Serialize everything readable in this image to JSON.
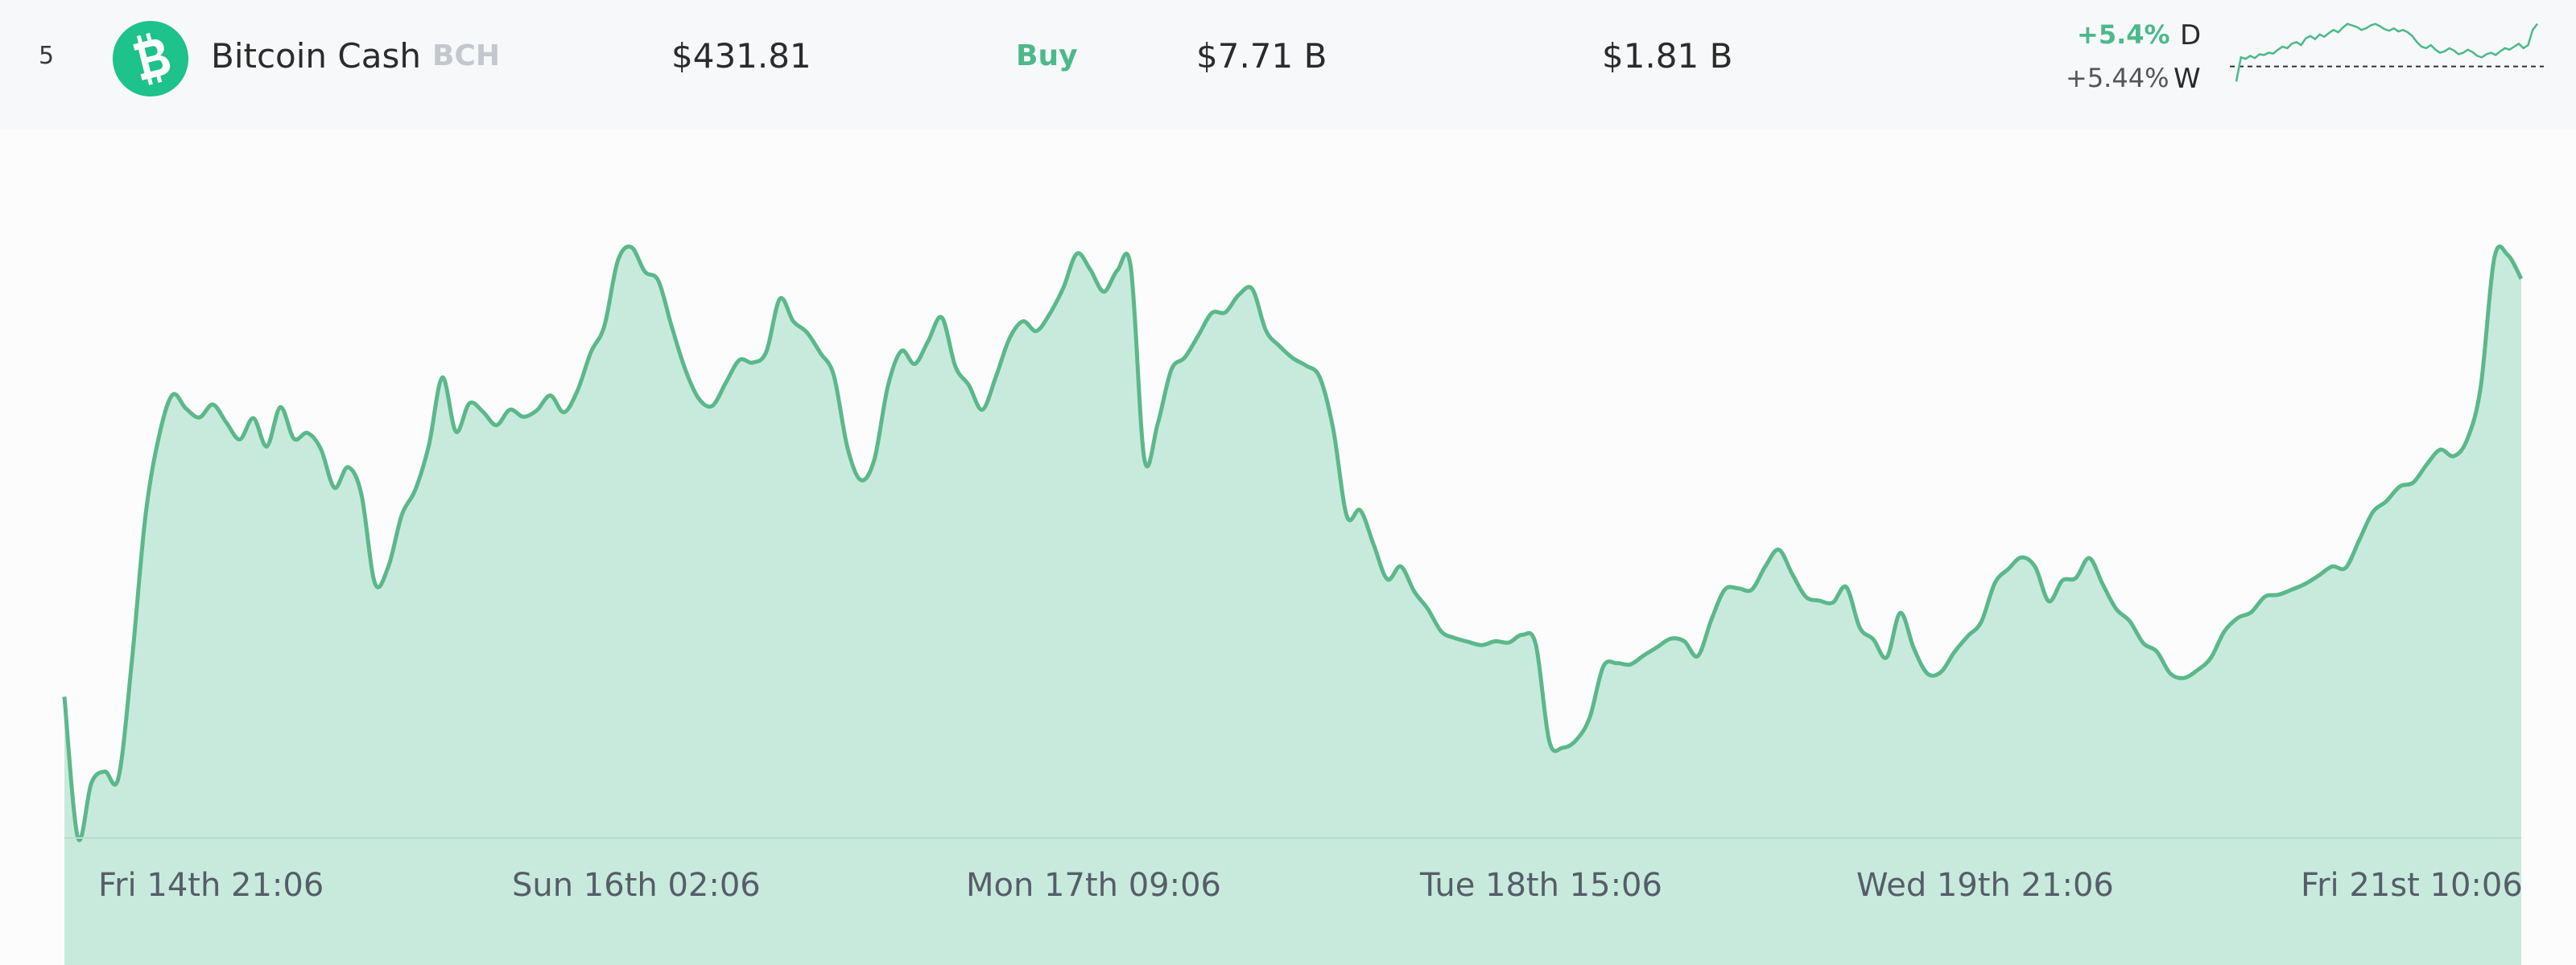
{
  "asset_row": {
    "rank": "5",
    "name": "Bitcoin Cash",
    "symbol": "BCH",
    "price": "$431.81",
    "buy_label": "Buy",
    "market_cap": "$7.71 B",
    "volume": "$1.81 B",
    "change_day_pct": "+5.4%",
    "change_day_label": "D",
    "change_week_pct": "+5.44%",
    "change_week_label": "W",
    "icon": "bitcoin-cash-icon",
    "sparkline": {
      "values": [
        28,
        60,
        58,
        62,
        59,
        64,
        63,
        66,
        65,
        70,
        74,
        72,
        78,
        80,
        76,
        85,
        88,
        84,
        90,
        87,
        92,
        96,
        93,
        99,
        104,
        102,
        100,
        96,
        98,
        102,
        104,
        101,
        97,
        95,
        98,
        94,
        96,
        93,
        88,
        80,
        74,
        72,
        76,
        70,
        66,
        68,
        72,
        69,
        64,
        66,
        70,
        67,
        62,
        60,
        64,
        66,
        63,
        68,
        72,
        70,
        74,
        78,
        72,
        76,
        96,
        104
      ],
      "baseline": 48
    }
  },
  "colors": {
    "accent": "#4cb98a",
    "chart_line": "#5bb88a",
    "chart_fill": "#c8eadc",
    "icon_bg": "#1ec28b",
    "muted": "#c4c7cc"
  },
  "chart_data": {
    "type": "area",
    "title": "",
    "xlabel": "",
    "ylabel": "",
    "ylim": [
      0,
      100
    ],
    "x_ticks": [
      "Fri 14th 21:06",
      "Sun 16th 02:06",
      "Mon 17th 09:06",
      "Tue 18th 15:06",
      "Wed 19th 21:06",
      "Fri 21st 10:06"
    ],
    "y_axis_shown": false,
    "grid": false,
    "series": [
      {
        "values": [
          21.9,
          0,
          8.5,
          10.3,
          9.3,
          27.4,
          49.8,
          62.2,
          68.7,
          66.6,
          65.2,
          67.2,
          64.4,
          61.8,
          65.1,
          60.7,
          66.8,
          61.9,
          62.8,
          60.3,
          54.3,
          57.5,
          53.3,
          39.5,
          42.1,
          50.1,
          54.0,
          60.9,
          71.4,
          63.0,
          67.4,
          66.1,
          64.0,
          66.4,
          65.3,
          66.3,
          68.6,
          66.0,
          69.3,
          75.3,
          79.4,
          89.5,
          91.6,
          87.8,
          86.4,
          79.2,
          72.6,
          68.1,
          67.0,
          70.6,
          74.1,
          73.7,
          75.4,
          83.6,
          80.1,
          78.4,
          75.2,
          71.7,
          60.6,
          55.5,
          58.7,
          70.0,
          75.5,
          73.5,
          77.1,
          80.7,
          73.1,
          70.2,
          66.4,
          71.5,
          77.4,
          80.1,
          78.6,
          81.3,
          85.3,
          90.6,
          88.1,
          84.7,
          88.0,
          88.4,
          58.8,
          64.3,
          72.6,
          74.5,
          77.9,
          81.4,
          81.5,
          84.2,
          85.1,
          78.7,
          76.3,
          74.4,
          73.2,
          71.4,
          63.3,
          49.9,
          50.8,
          45.4,
          40.1,
          42.1,
          38.2,
          35.5,
          32.0,
          31.0,
          30.4,
          29.9,
          30.5,
          30.3,
          31.5,
          30.0,
          15.0,
          14.0,
          15.2,
          18.7,
          26.6,
          27.1,
          26.9,
          28.3,
          29.6,
          30.9,
          30.5,
          28.2,
          33.8,
          38.5,
          38.7,
          38.5,
          42.1,
          44.7,
          40.9,
          37.4,
          36.8,
          36.5,
          38.9,
          32.6,
          30.8,
          28.0,
          34.9,
          29.4,
          25.5,
          25.7,
          28.8,
          31.3,
          33.5,
          39.5,
          41.7,
          43.5,
          42.0,
          36.7,
          39.9,
          40.3,
          43.4,
          39.3,
          35.5,
          33.6,
          30.2,
          28.9,
          25.5,
          24.8,
          26.0,
          27.9,
          32.0,
          34.1,
          35.0,
          37.4,
          37.7,
          38.5,
          39.4,
          40.7,
          42.1,
          41.9,
          46.2,
          50.5,
          52.2,
          54.5,
          55.1,
          57.9,
          60.2,
          59.2,
          61.8,
          70.0,
          89.9,
          90.4,
          86.7
        ]
      }
    ]
  }
}
